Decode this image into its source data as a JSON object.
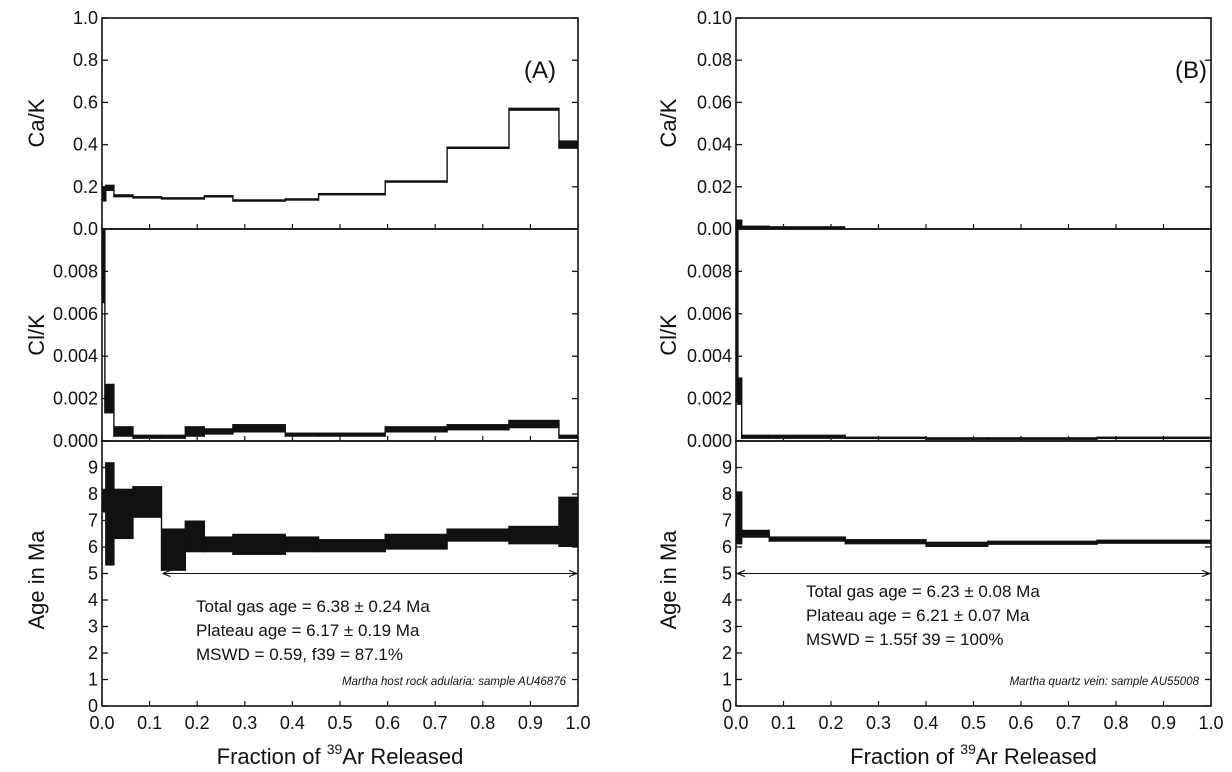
{
  "chart_data": [
    {
      "type": "step",
      "panel_label": "(A)",
      "x": {
        "label_prefix": "Fraction of ",
        "label_superscript": "39",
        "label_suffix": "Ar Released",
        "range": [
          0,
          1
        ],
        "ticks": [
          "0.0",
          "0.1",
          "0.2",
          "0.3",
          "0.4",
          "0.5",
          "0.6",
          "0.7",
          "0.8",
          "0.9",
          "1.0"
        ]
      },
      "subplots": [
        {
          "ylabel": "Ca/K",
          "ylim": [
            0,
            1.0
          ],
          "ticks": [
            0,
            0.2,
            0.4,
            0.6,
            0.8,
            1.0
          ],
          "tick_labels": [
            "0.0",
            "0.2",
            "0.4",
            "0.6",
            "0.8",
            "1.0"
          ],
          "steps": [
            {
              "x0": 0.0,
              "x1": 0.008,
              "lo": 0.13,
              "hi": 0.2
            },
            {
              "x0": 0.008,
              "x1": 0.025,
              "lo": 0.18,
              "hi": 0.21
            },
            {
              "x0": 0.025,
              "x1": 0.065,
              "lo": 0.15,
              "hi": 0.165
            },
            {
              "x0": 0.065,
              "x1": 0.125,
              "lo": 0.145,
              "hi": 0.155
            },
            {
              "x0": 0.125,
              "x1": 0.215,
              "lo": 0.14,
              "hi": 0.15
            },
            {
              "x0": 0.215,
              "x1": 0.275,
              "lo": 0.15,
              "hi": 0.16
            },
            {
              "x0": 0.275,
              "x1": 0.385,
              "lo": 0.13,
              "hi": 0.14
            },
            {
              "x0": 0.385,
              "x1": 0.455,
              "lo": 0.135,
              "hi": 0.145
            },
            {
              "x0": 0.455,
              "x1": 0.595,
              "lo": 0.16,
              "hi": 0.17
            },
            {
              "x0": 0.595,
              "x1": 0.725,
              "lo": 0.22,
              "hi": 0.23
            },
            {
              "x0": 0.725,
              "x1": 0.855,
              "lo": 0.38,
              "hi": 0.39
            },
            {
              "x0": 0.855,
              "x1": 0.96,
              "lo": 0.56,
              "hi": 0.575
            },
            {
              "x0": 0.96,
              "x1": 1.0,
              "lo": 0.38,
              "hi": 0.42
            }
          ]
        },
        {
          "ylabel": "Cl/K",
          "ylim": [
            0,
            0.01
          ],
          "ticks": [
            0,
            0.002,
            0.004,
            0.006,
            0.008
          ],
          "tick_labels": [
            "0.000",
            "0.002",
            "0.004",
            "0.006",
            "0.008"
          ],
          "steps": [
            {
              "x0": 0.0,
              "x1": 0.006,
              "lo": 0.0065,
              "hi": 0.01
            },
            {
              "x0": 0.006,
              "x1": 0.025,
              "lo": 0.0013,
              "hi": 0.0027
            },
            {
              "x0": 0.025,
              "x1": 0.065,
              "lo": 0.0002,
              "hi": 0.0007
            },
            {
              "x0": 0.065,
              "x1": 0.125,
              "lo": 0.0001,
              "hi": 0.0003
            },
            {
              "x0": 0.125,
              "x1": 0.175,
              "lo": 0.0001,
              "hi": 0.0003
            },
            {
              "x0": 0.175,
              "x1": 0.215,
              "lo": 0.0002,
              "hi": 0.0007
            },
            {
              "x0": 0.215,
              "x1": 0.275,
              "lo": 0.0003,
              "hi": 0.0006
            },
            {
              "x0": 0.275,
              "x1": 0.385,
              "lo": 0.0004,
              "hi": 0.0008
            },
            {
              "x0": 0.385,
              "x1": 0.455,
              "lo": 0.0002,
              "hi": 0.0004
            },
            {
              "x0": 0.455,
              "x1": 0.595,
              "lo": 0.0002,
              "hi": 0.0004
            },
            {
              "x0": 0.595,
              "x1": 0.725,
              "lo": 0.0004,
              "hi": 0.0007
            },
            {
              "x0": 0.725,
              "x1": 0.855,
              "lo": 0.0005,
              "hi": 0.0008
            },
            {
              "x0": 0.855,
              "x1": 0.96,
              "lo": 0.0006,
              "hi": 0.001
            },
            {
              "x0": 0.96,
              "x1": 1.0,
              "lo": 0.0001,
              "hi": 0.0003
            }
          ]
        },
        {
          "ylabel": "Age in Ma",
          "ylim": [
            0,
            10
          ],
          "ticks": [
            0,
            1,
            2,
            3,
            4,
            5,
            6,
            7,
            8,
            9
          ],
          "tick_labels": [
            "0",
            "1",
            "2",
            "3",
            "4",
            "5",
            "6",
            "7",
            "8",
            "9"
          ],
          "steps": [
            {
              "x0": 0.0,
              "x1": 0.008,
              "lo": 7.3,
              "hi": 8.2
            },
            {
              "x0": 0.008,
              "x1": 0.025,
              "lo": 5.3,
              "hi": 9.2
            },
            {
              "x0": 0.025,
              "x1": 0.065,
              "lo": 6.3,
              "hi": 8.2
            },
            {
              "x0": 0.065,
              "x1": 0.125,
              "lo": 7.1,
              "hi": 8.3
            },
            {
              "x0": 0.125,
              "x1": 0.175,
              "lo": 5.1,
              "hi": 6.7
            },
            {
              "x0": 0.175,
              "x1": 0.215,
              "lo": 5.8,
              "hi": 7.0
            },
            {
              "x0": 0.215,
              "x1": 0.275,
              "lo": 5.8,
              "hi": 6.4
            },
            {
              "x0": 0.275,
              "x1": 0.385,
              "lo": 5.7,
              "hi": 6.5
            },
            {
              "x0": 0.385,
              "x1": 0.455,
              "lo": 5.8,
              "hi": 6.4
            },
            {
              "x0": 0.455,
              "x1": 0.595,
              "lo": 5.8,
              "hi": 6.3
            },
            {
              "x0": 0.595,
              "x1": 0.725,
              "lo": 5.9,
              "hi": 6.5
            },
            {
              "x0": 0.725,
              "x1": 0.855,
              "lo": 6.2,
              "hi": 6.7
            },
            {
              "x0": 0.855,
              "x1": 0.96,
              "lo": 6.1,
              "hi": 6.8
            },
            {
              "x0": 0.96,
              "x1": 1.0,
              "lo": 6.0,
              "hi": 7.9
            }
          ],
          "plateau": {
            "x0": 0.125,
            "x1": 1.0,
            "y": 5.0
          },
          "info_lines": [
            "Total gas age = 6.38 ± 0.24 Ma",
            "Plateau age = 6.17 ± 0.19 Ma",
            "MSWD = 0.59, f39 = 87.1%"
          ],
          "sample_note": "Martha host rock adularia: sample AU46876"
        }
      ]
    },
    {
      "type": "step",
      "panel_label": "(B)",
      "x": {
        "label_prefix": "Fraction of ",
        "label_superscript": "39",
        "label_suffix": "Ar Released",
        "range": [
          0,
          1
        ],
        "ticks": [
          "0.0",
          "0.1",
          "0.2",
          "0.3",
          "0.4",
          "0.5",
          "0.6",
          "0.7",
          "0.8",
          "0.9",
          "1.0"
        ]
      },
      "subplots": [
        {
          "ylabel": "Ca/K",
          "ylim": [
            0,
            0.1
          ],
          "ticks": [
            0,
            0.02,
            0.04,
            0.06,
            0.08,
            0.1
          ],
          "tick_labels": [
            "0.00",
            "0.02",
            "0.04",
            "0.06",
            "0.08",
            "0.10"
          ],
          "steps": [
            {
              "x0": 0.0,
              "x1": 0.012,
              "lo": 0.0002,
              "hi": 0.0045
            },
            {
              "x0": 0.012,
              "x1": 0.07,
              "lo": 0.0002,
              "hi": 0.0016
            },
            {
              "x0": 0.07,
              "x1": 0.23,
              "lo": 0.0003,
              "hi": 0.0012
            }
          ]
        },
        {
          "ylabel": "Cl/K",
          "ylim": [
            0,
            0.01
          ],
          "ticks": [
            0,
            0.002,
            0.004,
            0.006,
            0.008
          ],
          "tick_labels": [
            "0.000",
            "0.002",
            "0.004",
            "0.006",
            "0.008"
          ],
          "steps": [
            {
              "x0": 0.0,
              "x1": 0.004,
              "lo": 0.0018,
              "hi": 0.01
            },
            {
              "x0": 0.004,
              "x1": 0.012,
              "lo": 0.0017,
              "hi": 0.003
            },
            {
              "x0": 0.012,
              "x1": 0.07,
              "lo": 0.0001,
              "hi": 0.0003
            },
            {
              "x0": 0.07,
              "x1": 0.23,
              "lo": 0.0001,
              "hi": 0.0003
            },
            {
              "x0": 0.23,
              "x1": 0.4,
              "lo": 0.0001,
              "hi": 0.0002
            },
            {
              "x0": 0.4,
              "x1": 0.53,
              "lo": 5e-05,
              "hi": 0.00018
            },
            {
              "x0": 0.53,
              "x1": 0.76,
              "lo": 5e-05,
              "hi": 0.00018
            },
            {
              "x0": 0.76,
              "x1": 1.0,
              "lo": 0.0001,
              "hi": 0.0002
            }
          ]
        },
        {
          "ylabel": "Age in Ma",
          "ylim": [
            0,
            10
          ],
          "ticks": [
            0,
            1,
            2,
            3,
            4,
            5,
            6,
            7,
            8,
            9
          ],
          "tick_labels": [
            "0",
            "1",
            "2",
            "3",
            "4",
            "5",
            "6",
            "7",
            "8",
            "9"
          ],
          "steps": [
            {
              "x0": 0.0,
              "x1": 0.012,
              "lo": 6.1,
              "hi": 8.1
            },
            {
              "x0": 0.012,
              "x1": 0.07,
              "lo": 6.35,
              "hi": 6.65
            },
            {
              "x0": 0.07,
              "x1": 0.23,
              "lo": 6.2,
              "hi": 6.4
            },
            {
              "x0": 0.23,
              "x1": 0.4,
              "lo": 6.1,
              "hi": 6.3
            },
            {
              "x0": 0.4,
              "x1": 0.53,
              "lo": 6.0,
              "hi": 6.2
            },
            {
              "x0": 0.53,
              "x1": 0.76,
              "lo": 6.08,
              "hi": 6.24
            },
            {
              "x0": 0.76,
              "x1": 1.0,
              "lo": 6.12,
              "hi": 6.28
            }
          ],
          "plateau": {
            "x0": 0.0,
            "x1": 1.0,
            "y": 5.0
          },
          "info_lines": [
            "Total gas age = 6.23 ± 0.08 Ma",
            "Plateau age = 6.21 ± 0.07 Ma",
            "MSWD = 1.55f 39 = 100%"
          ],
          "sample_note": "Martha quartz vein: sample AU55008"
        }
      ]
    }
  ]
}
